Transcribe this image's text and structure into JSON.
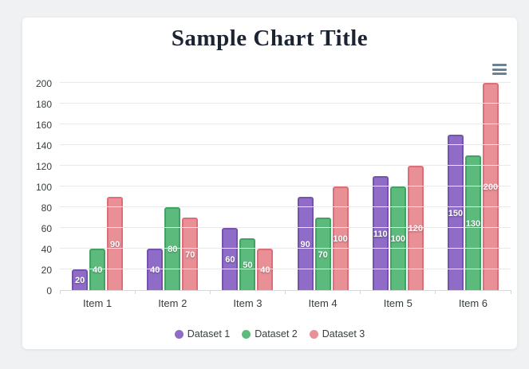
{
  "page": {
    "background_color": "#f0f1f2",
    "card_color": "#ffffff"
  },
  "header": {
    "title": "Sample Chart Title",
    "title_color": "#1c2333"
  },
  "toolbar": {
    "menu_icon": "hamburger-menu"
  },
  "chart_data": {
    "type": "bar",
    "title": "Sample Chart Title",
    "categories": [
      "Item 1",
      "Item 2",
      "Item 3",
      "Item 4",
      "Item 5",
      "Item 6"
    ],
    "series": [
      {
        "name": "Dataset 1",
        "values": [
          20,
          40,
          60,
          90,
          110,
          150
        ],
        "color": "#8e6cc8",
        "border_color": "#7452ae"
      },
      {
        "name": "Dataset 2",
        "values": [
          40,
          80,
          50,
          70,
          100,
          130
        ],
        "color": "#5dba7d",
        "border_color": "#41a263"
      },
      {
        "name": "Dataset 3",
        "values": [
          90,
          70,
          40,
          100,
          120,
          200
        ],
        "color": "#e98f96",
        "border_color": "#dd6e79"
      }
    ],
    "ylim": [
      0,
      200
    ],
    "yticks": [
      0,
      20,
      40,
      60,
      80,
      100,
      120,
      140,
      160,
      180,
      200
    ],
    "grid": true,
    "legend_position": "bottom",
    "data_labels": true,
    "data_label_color": "#ffffff",
    "axis_label_color": "#373d3f",
    "grid_color": "#e9e9e9",
    "xlabel": "",
    "ylabel": ""
  }
}
